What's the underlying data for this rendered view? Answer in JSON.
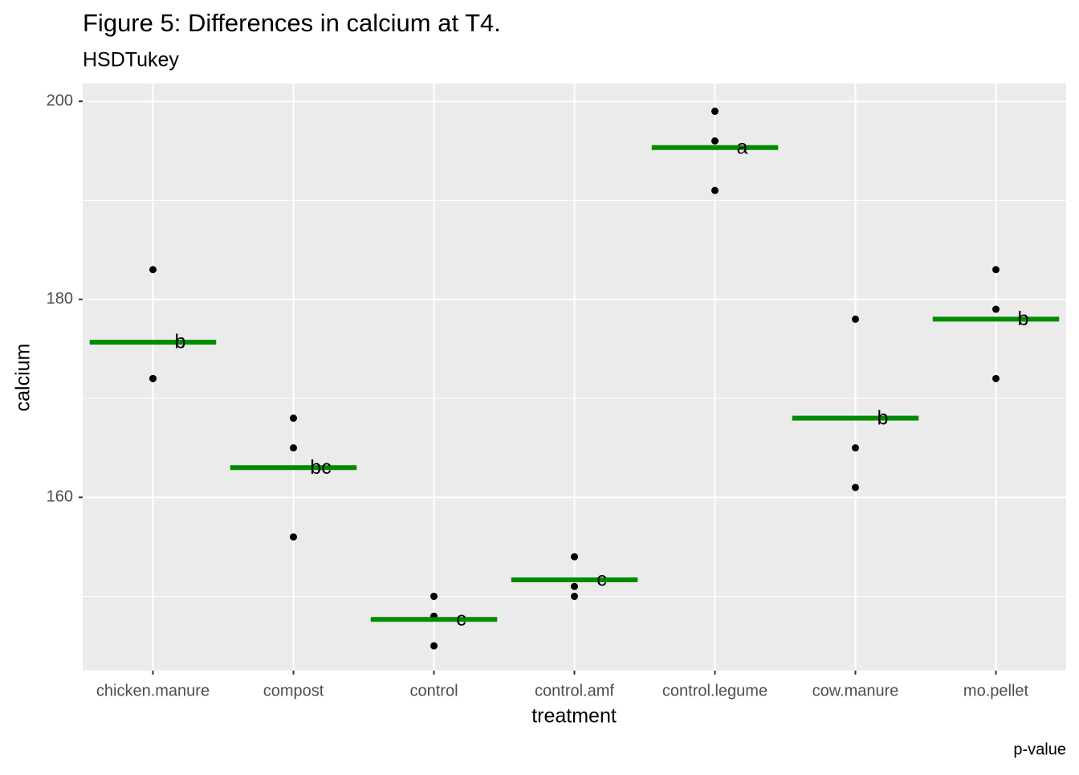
{
  "chart_data": {
    "type": "strip",
    "title": "Figure 5: Differences in calcium at T4.",
    "subtitle": "HSDTukey",
    "x_label": "treatment",
    "y_label": "calcium",
    "caption": "p-value",
    "categories": [
      "chicken.manure",
      "compost",
      "control",
      "control.amf",
      "control.legume",
      "cow.manure",
      "mo.pellet"
    ],
    "points": [
      [
        183,
        172,
        172
      ],
      [
        168,
        165,
        156
      ],
      [
        150,
        148,
        145
      ],
      [
        154,
        151,
        150
      ],
      [
        199,
        196,
        191
      ],
      [
        178,
        165,
        161
      ],
      [
        183,
        179,
        172
      ]
    ],
    "point_color": "#000000",
    "means": [
      175.67,
      163,
      147.67,
      151.67,
      195.33,
      168,
      178
    ],
    "mean_color": "#008b00",
    "letters": [
      "b",
      "bc",
      "c",
      "c",
      "a",
      "b",
      "b"
    ],
    "ylim": [
      142.5,
      201.8
    ],
    "yticks": [
      160,
      180,
      200
    ],
    "minor_yticks": [
      150,
      170,
      190
    ],
    "grid": true
  }
}
